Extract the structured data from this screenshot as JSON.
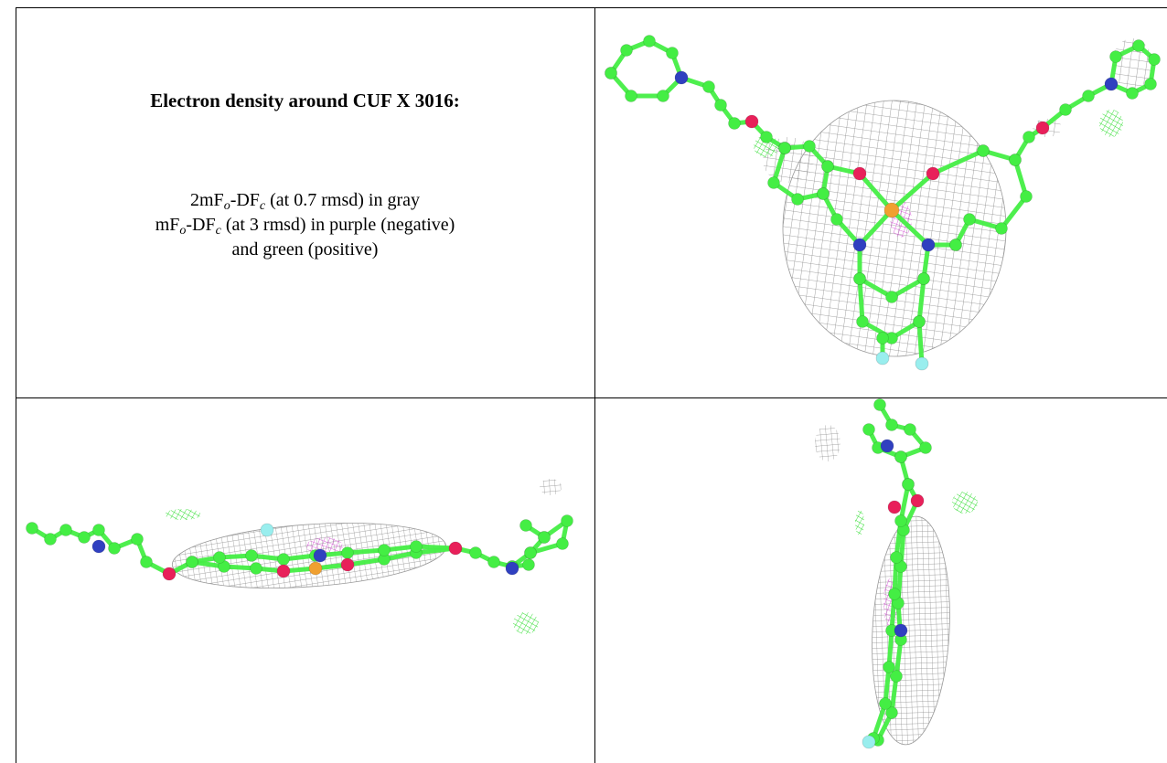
{
  "figure": {
    "title": "Electron density around CUF X 3016:",
    "caption": [
      [
        "2mF",
        "o",
        "-DF",
        "c",
        " (at 0.7 rmsd) in gray"
      ],
      [
        "mF",
        "o",
        "-DF",
        "c",
        " (at 3 rmsd) in purple (negative)"
      ],
      [
        "and green (positive)"
      ]
    ]
  }
}
